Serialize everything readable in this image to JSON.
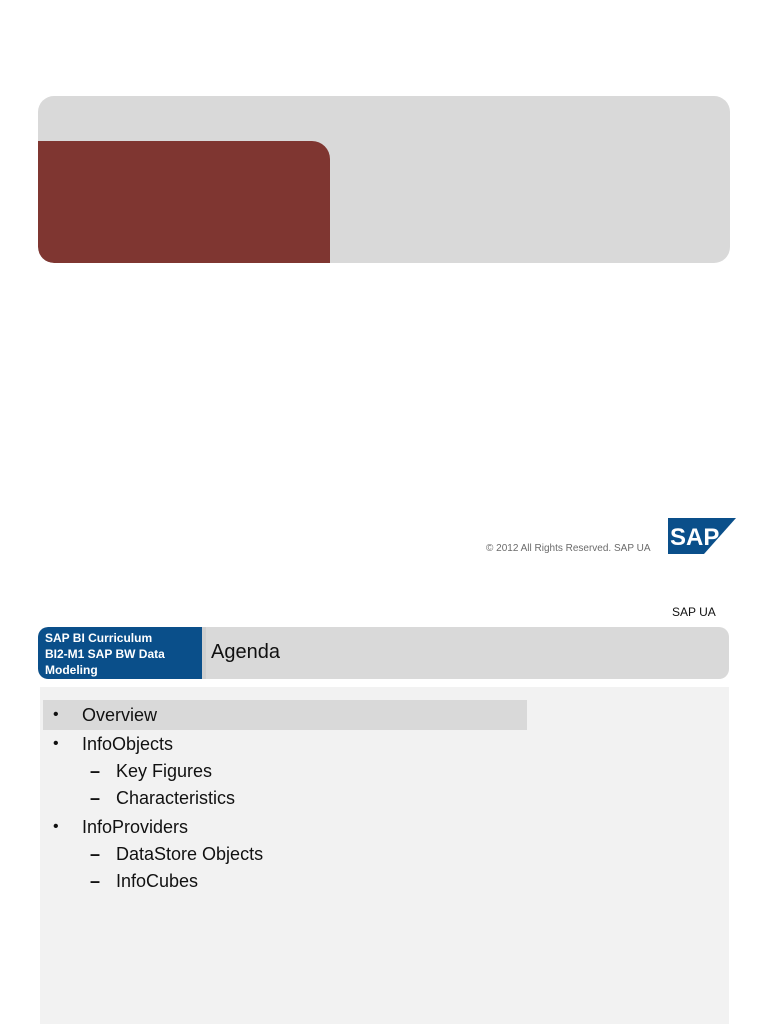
{
  "slide1": {
    "copyright": "© 2012 All Rights Reserved. SAP UA",
    "logo_text": "SAP",
    "colors": {
      "banner": "#d9d9d9",
      "accent": "#7f3631",
      "logo": "#0a4f8a"
    }
  },
  "slide2": {
    "tag": "SAP UA",
    "course": {
      "line1": "SAP BI Curriculum",
      "line2": "BI2-M1 SAP BW Data",
      "line3": "Modeling"
    },
    "title": "Agenda",
    "items": [
      {
        "text": "Overview",
        "level": 1,
        "highlighted": true
      },
      {
        "text": "InfoObjects",
        "level": 1
      },
      {
        "text": "Key Figures",
        "level": 2
      },
      {
        "text": "Characteristics",
        "level": 2
      },
      {
        "text": "InfoProviders",
        "level": 1
      },
      {
        "text": "DataStore Objects",
        "level": 2
      },
      {
        "text": "InfoCubes",
        "level": 2
      }
    ],
    "bullet_glyph": "•",
    "dash_glyph": "–",
    "colors": {
      "header_blue": "#0a4f8a",
      "panel": "#f2f2f2",
      "highlight": "#d9d9d9"
    }
  }
}
